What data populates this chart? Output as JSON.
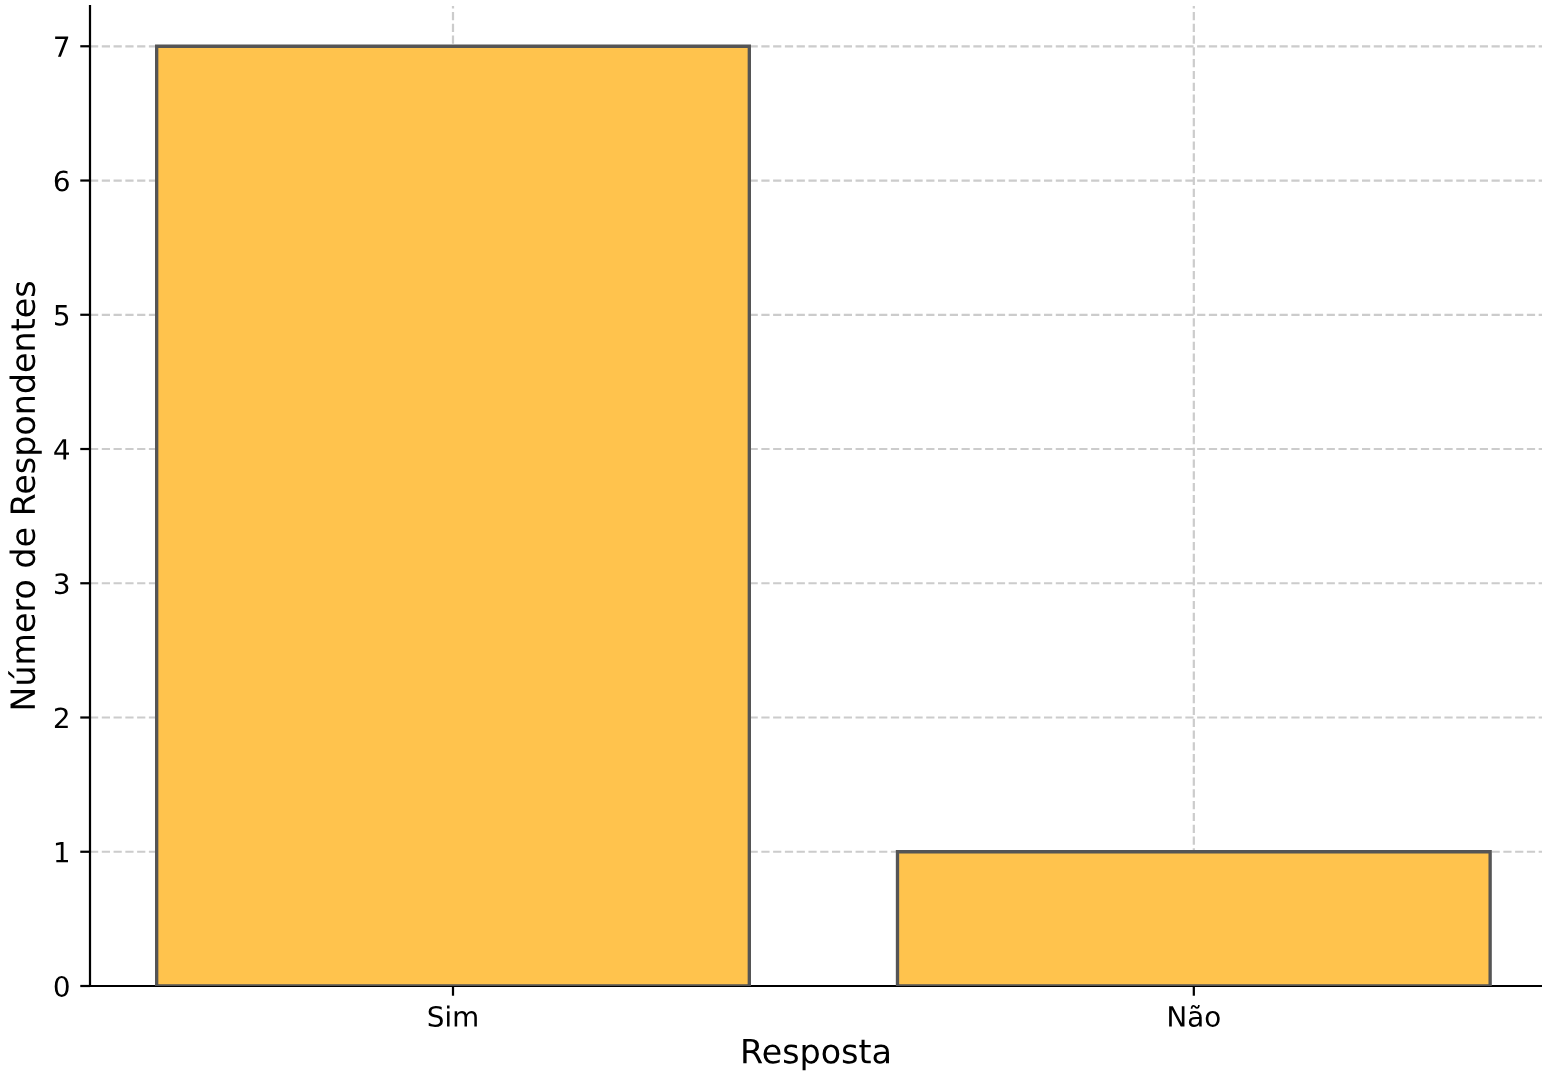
{
  "chart_data": {
    "type": "bar",
    "xlabel": "Resposta",
    "ylabel": "Número de Respondentes",
    "categories": [
      "Sim",
      "Não"
    ],
    "values": [
      7,
      1
    ],
    "color": "#ffc34d",
    "ylim": [
      0,
      7.3
    ],
    "yticks": [
      0,
      1,
      2,
      3,
      4,
      5,
      6,
      7
    ],
    "grid": true,
    "line_style": "dashed"
  }
}
